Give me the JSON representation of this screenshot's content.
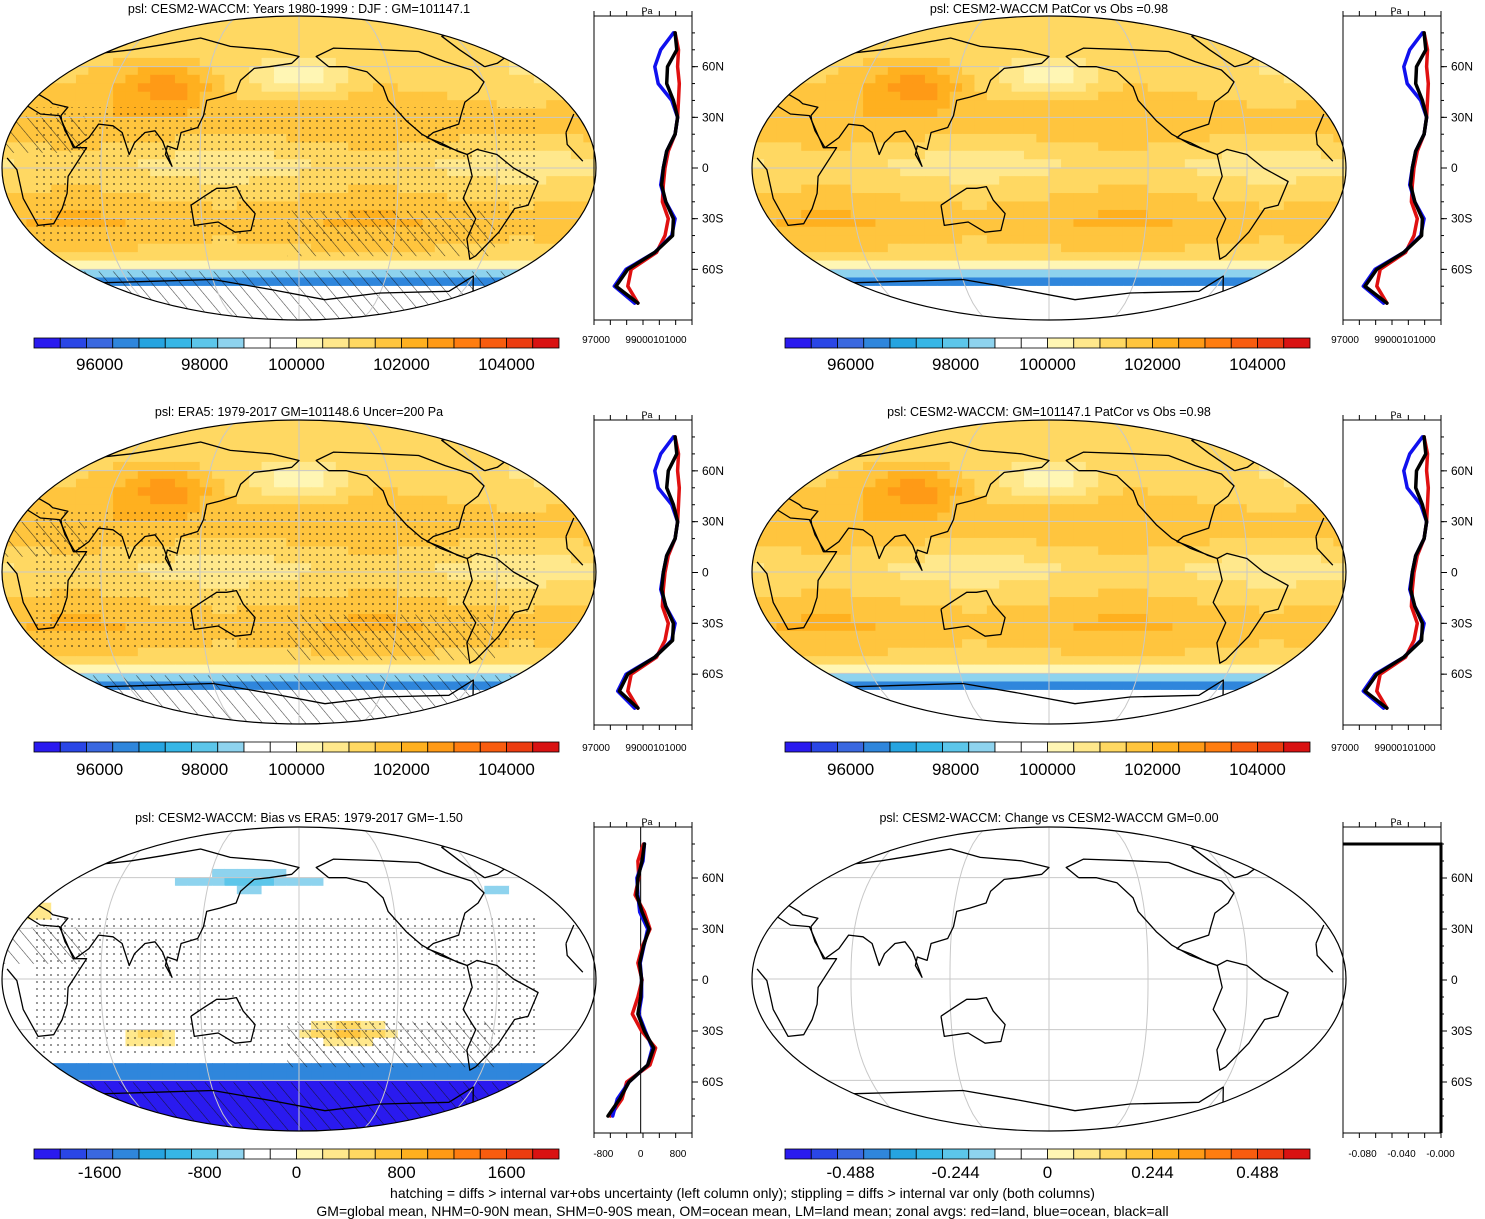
{
  "panels": [
    {
      "title": "psl: CESM2-WACCM: Years 1980-1999 : DJF : GM=101147.1",
      "style": "abs",
      "marks": "hatch",
      "cbar": "abs"
    },
    {
      "title": "psl: CESM2-WACCM PatCor vs Obs =0.98",
      "style": "abs",
      "marks": "none",
      "cbar": "abs"
    },
    {
      "title": "psl: ERA5: 1979-2017 GM=101148.6 Uncer=200 Pa",
      "style": "abs",
      "marks": "hatch",
      "cbar": "abs"
    },
    {
      "title": "psl: CESM2-WACCM: GM=101147.1 PatCor vs Obs =0.98",
      "style": "abs",
      "marks": "none",
      "cbar": "abs"
    },
    {
      "title": "psl: CESM2-WACCM: Bias vs ERA5: 1979-2017 GM=-1.50",
      "style": "bias",
      "marks": "hatch",
      "cbar": "bias"
    },
    {
      "title": "psl: CESM2-WACCM: Change vs CESM2-WACCM GM=0.00",
      "style": "blank",
      "marks": "none",
      "cbar": "change"
    }
  ],
  "colorbars": {
    "abs": {
      "labels": [
        "96000",
        "98000",
        "100000",
        "102000",
        "104000"
      ]
    },
    "bias": {
      "labels": [
        "-1600",
        "-800",
        "0",
        "800",
        "1600"
      ]
    },
    "change": {
      "labels": [
        "-0.488",
        "-0.244",
        "0",
        "0.244",
        "0.488"
      ]
    }
  },
  "palette": [
    "#2a1aef",
    "#2a46e6",
    "#3a68e0",
    "#2f86dc",
    "#26a4e0",
    "#36b6e6",
    "#5cc6ea",
    "#8ed3ee",
    "#ffffff",
    "#ffffff",
    "#fff6b4",
    "#ffe88c",
    "#ffd862",
    "#ffc53e",
    "#ffb01f",
    "#ff9a16",
    "#ff7d10",
    "#f85c0f",
    "#ec3c10",
    "#d91212"
  ],
  "lat_labels": [
    "60N",
    "30N",
    "0",
    "30S",
    "60S"
  ],
  "profile_unit": "Pa",
  "chart_data": [
    {
      "type": "zonal_profile",
      "panel": 1,
      "unit": "Pa",
      "x_ticks": [
        "97000",
        "99000101000"
      ],
      "lat": [
        -80,
        -70,
        -60,
        -50,
        -40,
        -30,
        -20,
        -10,
        0,
        10,
        20,
        30,
        40,
        50,
        60,
        70,
        80
      ],
      "series": [
        {
          "color": "#000000",
          "values": [
            99600,
            98300,
            99000,
            100600,
            101650,
            101700,
            101250,
            101000,
            101100,
            101300,
            101800,
            101950,
            101700,
            101300,
            101350,
            101900,
            101800
          ]
        },
        {
          "color": "#e01010",
          "values": [
            99600,
            99000,
            99200,
            100700,
            101200,
            101400,
            101050,
            101100,
            101200,
            101400,
            101800,
            101950,
            102000,
            102050,
            101950,
            102000,
            101800
          ]
        },
        {
          "color": "#1010ee",
          "values": [
            99400,
            98200,
            98900,
            100600,
            101600,
            101800,
            101250,
            100950,
            101100,
            101300,
            101800,
            101950,
            101600,
            100800,
            100600,
            100950,
            101700
          ]
        }
      ]
    },
    {
      "type": "zonal_profile",
      "panel": 2,
      "unit": "Pa",
      "x_ticks": [
        "97000",
        "99000101000"
      ],
      "lat": [
        -80,
        -70,
        -60,
        -50,
        -40,
        -30,
        -20,
        -10,
        0,
        10,
        20,
        30,
        40,
        50,
        60,
        70,
        80
      ],
      "series": [
        {
          "color": "#000000",
          "values": [
            99600,
            98300,
            99000,
            100600,
            101650,
            101700,
            101250,
            101000,
            101100,
            101300,
            101800,
            101950,
            101700,
            101300,
            101350,
            101900,
            101800
          ]
        },
        {
          "color": "#e01010",
          "values": [
            99600,
            99000,
            99200,
            100700,
            101200,
            101400,
            101050,
            101100,
            101200,
            101400,
            101800,
            101950,
            102000,
            102050,
            101950,
            102000,
            101800
          ]
        },
        {
          "color": "#1010ee",
          "values": [
            99400,
            98200,
            98900,
            100600,
            101600,
            101800,
            101250,
            100950,
            101100,
            101300,
            101800,
            101950,
            101600,
            100800,
            100600,
            100950,
            101700
          ]
        }
      ]
    },
    {
      "type": "zonal_profile",
      "panel": 3,
      "unit": "Pa",
      "x_ticks": [
        "97000",
        "99000101000"
      ],
      "lat": [
        -80,
        -70,
        -60,
        -50,
        -40,
        -30,
        -20,
        -10,
        0,
        10,
        20,
        30,
        40,
        50,
        60,
        70,
        80
      ],
      "series": [
        {
          "color": "#000000",
          "values": [
            99600,
            98500,
            99000,
            100600,
            101650,
            101700,
            101250,
            101000,
            101100,
            101300,
            101800,
            101950,
            101700,
            101300,
            101400,
            101900,
            101800
          ]
        },
        {
          "color": "#e01010",
          "values": [
            99600,
            99000,
            99200,
            100700,
            101200,
            101400,
            101050,
            101100,
            101200,
            101400,
            101800,
            101950,
            102000,
            102050,
            101950,
            102000,
            101800
          ]
        },
        {
          "color": "#1010ee",
          "values": [
            99400,
            98400,
            98900,
            100600,
            101600,
            101800,
            101250,
            100950,
            101100,
            101300,
            101800,
            101950,
            101600,
            100800,
            100600,
            100950,
            101700
          ]
        }
      ]
    },
    {
      "type": "zonal_profile",
      "panel": 4,
      "unit": "Pa",
      "x_ticks": [
        "97000",
        "99000101000"
      ],
      "lat": [
        -80,
        -70,
        -60,
        -50,
        -40,
        -30,
        -20,
        -10,
        0,
        10,
        20,
        30,
        40,
        50,
        60,
        70,
        80
      ],
      "series": [
        {
          "color": "#000000",
          "values": [
            99600,
            98300,
            99000,
            100600,
            101650,
            101700,
            101250,
            101000,
            101100,
            101300,
            101800,
            101950,
            101700,
            101300,
            101350,
            101900,
            101800
          ]
        },
        {
          "color": "#e01010",
          "values": [
            99600,
            99000,
            99200,
            100700,
            101200,
            101400,
            101050,
            101100,
            101200,
            101400,
            101800,
            101950,
            102000,
            102050,
            101950,
            102000,
            101800
          ]
        },
        {
          "color": "#1010ee",
          "values": [
            99400,
            98200,
            98900,
            100600,
            101600,
            101800,
            101250,
            100950,
            101100,
            101300,
            101800,
            101950,
            101600,
            100800,
            100600,
            100950,
            101700
          ]
        }
      ]
    },
    {
      "type": "zonal_profile",
      "panel": 5,
      "unit": "Pa",
      "x_ticks": [
        "-800",
        "0",
        "800"
      ],
      "lat": [
        -80,
        -70,
        -60,
        -50,
        -40,
        -30,
        -20,
        -10,
        0,
        10,
        20,
        30,
        40,
        50,
        60,
        70,
        80
      ],
      "series": [
        {
          "color": "#000000",
          "values": [
            -700,
            -450,
            -250,
            150,
            280,
            80,
            -60,
            0,
            20,
            -20,
            60,
            180,
            30,
            -80,
            -60,
            30,
            80
          ]
        },
        {
          "color": "#e01010",
          "values": [
            -650,
            -400,
            -300,
            200,
            320,
            20,
            -180,
            -60,
            30,
            -60,
            40,
            200,
            80,
            -120,
            -40,
            -60,
            60
          ]
        },
        {
          "color": "#1010ee",
          "values": [
            -600,
            -500,
            -250,
            150,
            250,
            100,
            -40,
            20,
            20,
            -10,
            70,
            150,
            -20,
            -60,
            -80,
            50,
            80
          ]
        }
      ]
    },
    {
      "type": "zonal_profile",
      "panel": 6,
      "unit": "Pa",
      "x_ticks": [
        "-0.080",
        "-0.040",
        "-0.000"
      ],
      "lat": [
        -80,
        80
      ],
      "series": [
        {
          "color": "#000000",
          "values": [
            0,
            0
          ]
        }
      ]
    }
  ],
  "footer": {
    "line1": "hatching = diffs > internal var+obs uncertainty (left column only); stippling = diffs > internal var only (both columns)",
    "line2": "GM=global mean, NHM=0-90N mean, SHM=0-90S mean, OM=ocean mean, LM=land mean; zonal avgs: red=land, blue=ocean, black=all"
  }
}
